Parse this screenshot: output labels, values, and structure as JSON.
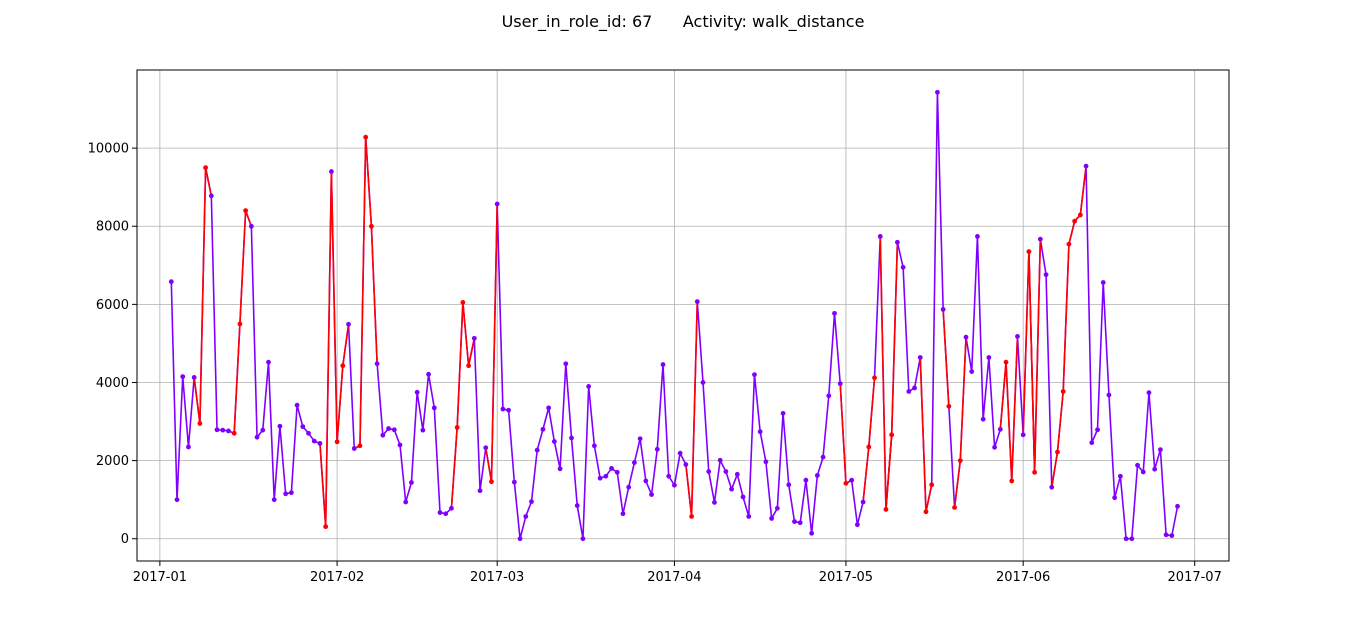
{
  "chart_data": {
    "type": "line",
    "title": "User_in_role_id: 67      Activity: walk_distance",
    "xlabel": "",
    "ylabel": "",
    "grid": true,
    "start_date": "2017-01-03",
    "x_unit": "days since start_date",
    "xlim_days": [
      -6,
      185
    ],
    "ylim": [
      -570,
      12000
    ],
    "x_ticks": [
      {
        "label": "2017-01",
        "day": -2
      },
      {
        "label": "2017-02",
        "day": 29
      },
      {
        "label": "2017-03",
        "day": 57
      },
      {
        "label": "2017-04",
        "day": 88
      },
      {
        "label": "2017-05",
        "day": 118
      },
      {
        "label": "2017-06",
        "day": 149
      },
      {
        "label": "2017-07",
        "day": 179
      }
    ],
    "y_ticks": [
      0,
      2000,
      4000,
      6000,
      8000,
      10000
    ],
    "colors": {
      "normal": "#8000ff",
      "highlight": "#ff0000",
      "grid": "#b0b0b0",
      "axis": "#000000"
    },
    "values": [
      6580,
      1000,
      4150,
      2350,
      4130,
      2950,
      9500,
      8780,
      2790,
      2780,
      2760,
      2700,
      5500,
      8400,
      8000,
      2600,
      2780,
      4520,
      1000,
      2880,
      1150,
      1180,
      3420,
      2870,
      2700,
      2500,
      2440,
      310,
      9400,
      2480,
      4430,
      5490,
      2310,
      2380,
      10280,
      8000,
      4480,
      2650,
      2820,
      2790,
      2400,
      940,
      1440,
      3750,
      2780,
      4210,
      3350,
      670,
      640,
      780,
      2850,
      6050,
      4430,
      5130,
      1230,
      2330,
      1460,
      8570,
      3320,
      3290,
      1450,
      0,
      570,
      950,
      2270,
      2800,
      3350,
      2490,
      1790,
      4480,
      2580,
      850,
      0,
      3900,
      2380,
      1550,
      1600,
      1800,
      1700,
      640,
      1320,
      1950,
      2560,
      1480,
      1130,
      2290,
      4460,
      1600,
      1370,
      2190,
      1900,
      570,
      6070,
      4000,
      1720,
      930,
      2010,
      1720,
      1270,
      1650,
      1070,
      570,
      4200,
      2740,
      1970,
      520,
      780,
      3210,
      1380,
      440,
      410,
      1500,
      140,
      1620,
      2090,
      3660,
      5770,
      3970,
      1420,
      1500,
      360,
      940,
      2350,
      4120,
      7740,
      750,
      2660,
      7590,
      6950,
      3770,
      3860,
      4640,
      690,
      1380,
      11430,
      5870,
      3390,
      800,
      2000,
      5160,
      4280,
      7740,
      3060,
      4640,
      2340,
      2800,
      4520,
      1480,
      5180,
      2660,
      7350,
      1700,
      7670,
      6760,
      1320,
      2220,
      3770,
      7540,
      8130,
      8290,
      9540,
      2460,
      2790,
      6560,
      3680,
      1050,
      1600,
      0,
      0,
      1880,
      1710,
      3740,
      1780,
      2280,
      100,
      80,
      830
    ],
    "highlight_segments": [
      [
        4,
        7
      ],
      [
        11,
        14
      ],
      [
        26,
        28
      ],
      [
        28,
        29
      ],
      [
        29,
        31
      ],
      [
        32,
        36
      ],
      [
        49,
        51
      ],
      [
        51,
        53
      ],
      [
        55,
        57
      ],
      [
        90,
        92
      ],
      [
        117,
        119
      ],
      [
        121,
        123
      ],
      [
        124,
        127
      ],
      [
        125,
        126
      ],
      [
        131,
        133
      ],
      [
        135,
        136
      ],
      [
        137,
        139
      ],
      [
        145,
        146
      ],
      [
        146,
        148
      ],
      [
        149,
        151
      ],
      [
        150,
        152
      ],
      [
        154,
        158
      ],
      [
        158,
        160
      ]
    ],
    "highlight_points": [
      5,
      6,
      11,
      12,
      13,
      27,
      29,
      30,
      33,
      34,
      35,
      50,
      51,
      52,
      56,
      91,
      118,
      122,
      123,
      125,
      126,
      132,
      133,
      136,
      137,
      138,
      146,
      147,
      150,
      151,
      155,
      156,
      157,
      158,
      159
    ]
  }
}
